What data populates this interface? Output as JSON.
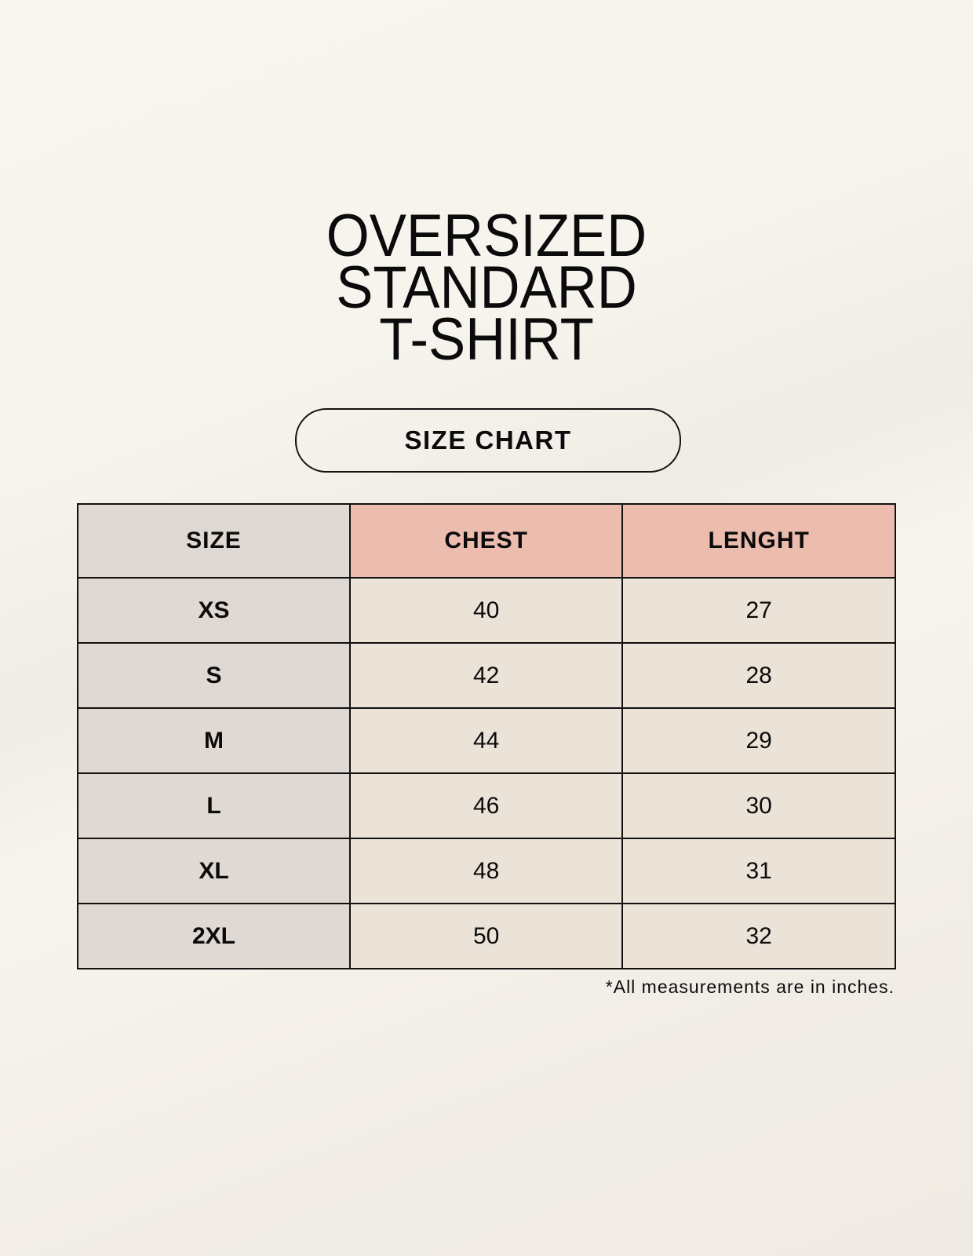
{
  "title_lines": [
    "OVERSIZED",
    "STANDARD",
    "T-SHIRT"
  ],
  "badge": "SIZE CHART",
  "table": {
    "headers": [
      "SIZE",
      "CHEST",
      "LENGHT"
    ],
    "rows": [
      [
        "XS",
        "40",
        "27"
      ],
      [
        "S",
        "42",
        "28"
      ],
      [
        "M",
        "44",
        "29"
      ],
      [
        "L",
        "46",
        "30"
      ],
      [
        "XL",
        "48",
        "31"
      ],
      [
        "2XL",
        "50",
        "32"
      ]
    ]
  },
  "footnote": "*All measurements are in inches.",
  "colors": {
    "size_column": "#e0d8d2",
    "header_accent": "#ecbcae",
    "value_cells": "#ebe3d8"
  }
}
